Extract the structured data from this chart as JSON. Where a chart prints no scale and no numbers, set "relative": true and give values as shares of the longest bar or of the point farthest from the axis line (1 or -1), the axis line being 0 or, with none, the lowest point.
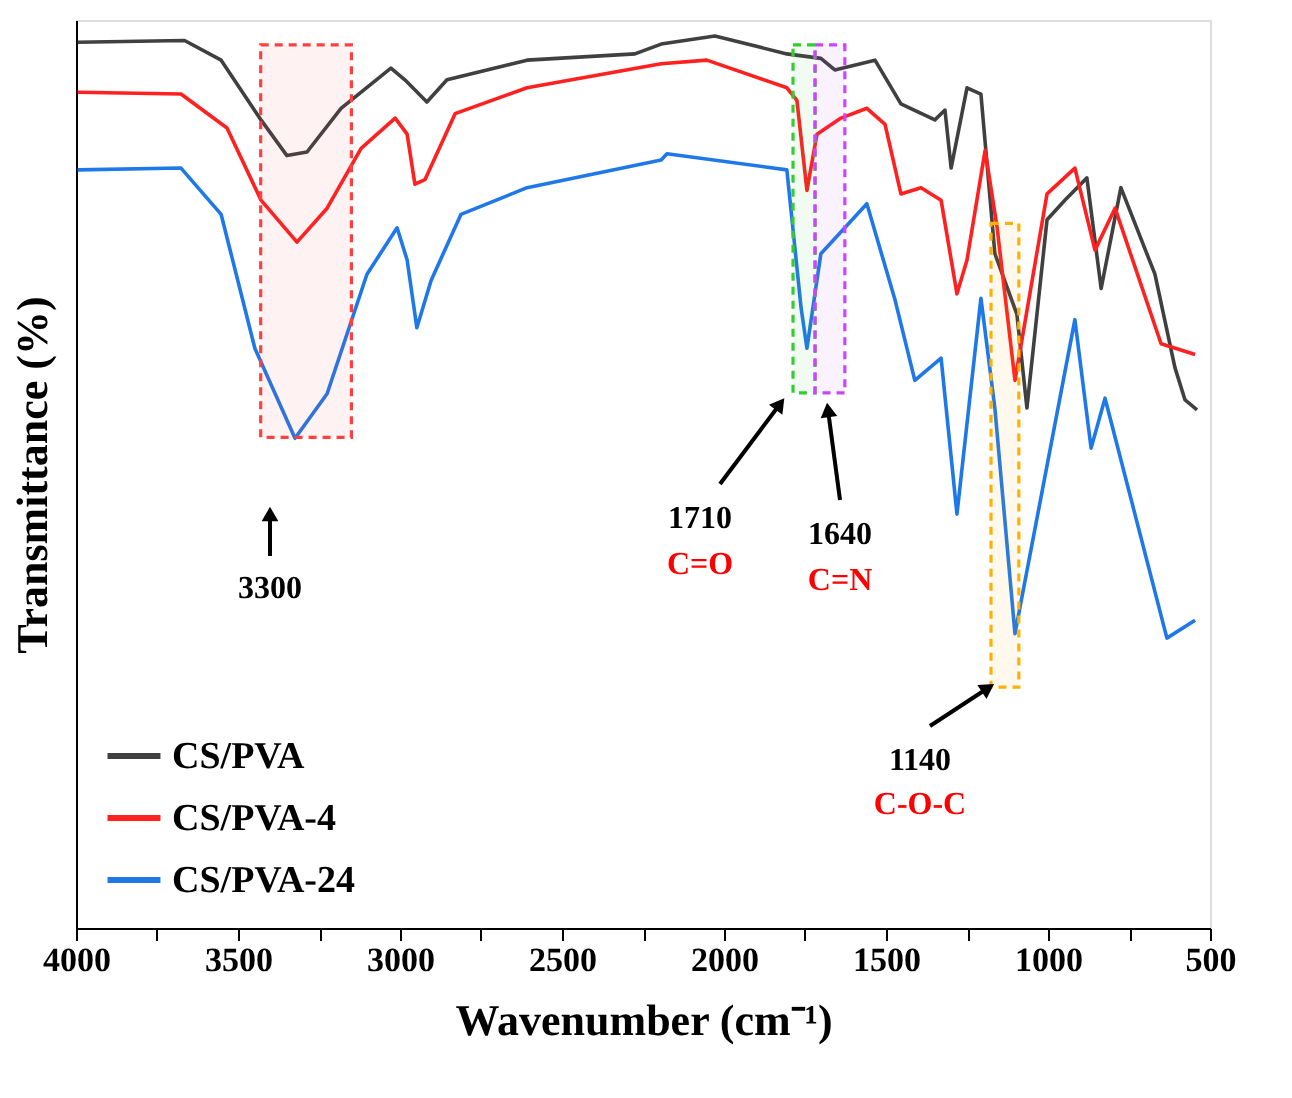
{
  "chart_data": {
    "type": "line",
    "relative": true,
    "xlabel": "Wavenumber (cm⁻¹)",
    "ylabel": "Transmittance (%)",
    "xlim": [
      4000,
      500
    ],
    "xticks": [
      4000,
      {
        "value": 3750,
        "label": null
      },
      3500,
      {
        "value": 3250,
        "label": null
      },
      3000,
      {
        "value": 2750,
        "label": null
      },
      2500,
      {
        "value": 2250,
        "label": null
      },
      2000,
      {
        "value": 1750,
        "label": null
      },
      1500,
      {
        "value": 1250,
        "label": null
      },
      1000,
      {
        "value": 750,
        "label": null
      },
      500
    ],
    "tick_labels": "x",
    "grid": false,
    "legend": "bottom left",
    "line_style": "solid",
    "marker": "none",
    "series": [
      {
        "name": "CS/PVA",
        "color": "#404040",
        "x": [
          3995,
          3665,
          3552,
          3429,
          3349,
          3287,
          3182,
          3028,
          2985,
          2917,
          2855,
          2608,
          2275,
          2194,
          2028,
          1806,
          1701,
          1658,
          1534,
          1454,
          1349,
          1318,
          1299,
          1250,
          1207,
          1164,
          1096,
          1065,
          1003,
          948,
          880,
          836,
          775,
          670,
          608,
          577,
          540
        ],
        "values": [
          0.993,
          0.995,
          0.973,
          0.906,
          0.866,
          0.87,
          0.919,
          0.964,
          0.951,
          0.926,
          0.951,
          0.973,
          0.98,
          0.991,
          1.0,
          0.98,
          0.975,
          0.962,
          0.973,
          0.924,
          0.906,
          0.917,
          0.852,
          0.942,
          0.935,
          0.756,
          0.688,
          0.583,
          0.794,
          0.816,
          0.841,
          0.717,
          0.83,
          0.733,
          0.628,
          0.592,
          0.581
        ]
      },
      {
        "name": "CS/PVA-4",
        "color": "#ff2020",
        "x": [
          3995,
          3676,
          3534,
          3429,
          3318,
          3225,
          3120,
          3015,
          2978,
          2954,
          2923,
          2830,
          2608,
          2194,
          2053,
          1806,
          1775,
          1744,
          1713,
          1639,
          1559,
          1503,
          1454,
          1392,
          1330,
          1281,
          1250,
          1194,
          1157,
          1102,
          1003,
          917,
          855,
          793,
          651,
          546
        ],
        "values": [
          0.937,
          0.935,
          0.897,
          0.816,
          0.769,
          0.807,
          0.874,
          0.908,
          0.89,
          0.834,
          0.839,
          0.913,
          0.942,
          0.969,
          0.973,
          0.942,
          0.928,
          0.827,
          0.89,
          0.908,
          0.919,
          0.901,
          0.823,
          0.83,
          0.816,
          0.711,
          0.749,
          0.872,
          0.785,
          0.614,
          0.823,
          0.852,
          0.76,
          0.807,
          0.655,
          0.643
        ]
      },
      {
        "name": "CS/PVA-24",
        "color": "#1f78e8",
        "x": [
          3995,
          3676,
          3552,
          3448,
          3324,
          3225,
          3102,
          3009,
          2978,
          2948,
          2904,
          2812,
          2608,
          2194,
          2176,
          1806,
          1762,
          1744,
          1701,
          1559,
          1472,
          1411,
          1330,
          1281,
          1207,
          1164,
          1102,
          917,
          867,
          824,
          633,
          546
        ],
        "values": [
          0.85,
          0.852,
          0.8,
          0.65,
          0.549,
          0.599,
          0.733,
          0.785,
          0.749,
          0.673,
          0.726,
          0.8,
          0.83,
          0.861,
          0.868,
          0.85,
          0.695,
          0.65,
          0.756,
          0.812,
          0.704,
          0.614,
          0.639,
          0.464,
          0.706,
          0.583,
          0.33,
          0.682,
          0.538,
          0.594,
          0.325,
          0.345
        ]
      }
    ],
    "bands": [
      {
        "axis": "x",
        "from": 3430,
        "to": 3150,
        "color": "#ff4040"
      },
      {
        "axis": "x",
        "from": 1787,
        "to": 1719,
        "color": "#33cc33"
      },
      {
        "axis": "x",
        "from": 1719,
        "to": 1627,
        "color": "#cc44ff"
      },
      {
        "axis": "x",
        "from": 1176,
        "to": 1090,
        "color": "#ffb000"
      }
    ],
    "annotations": [
      "3300",
      "1710",
      "C=O",
      "1640",
      "C=N",
      "1140",
      "C-O-C"
    ]
  }
}
